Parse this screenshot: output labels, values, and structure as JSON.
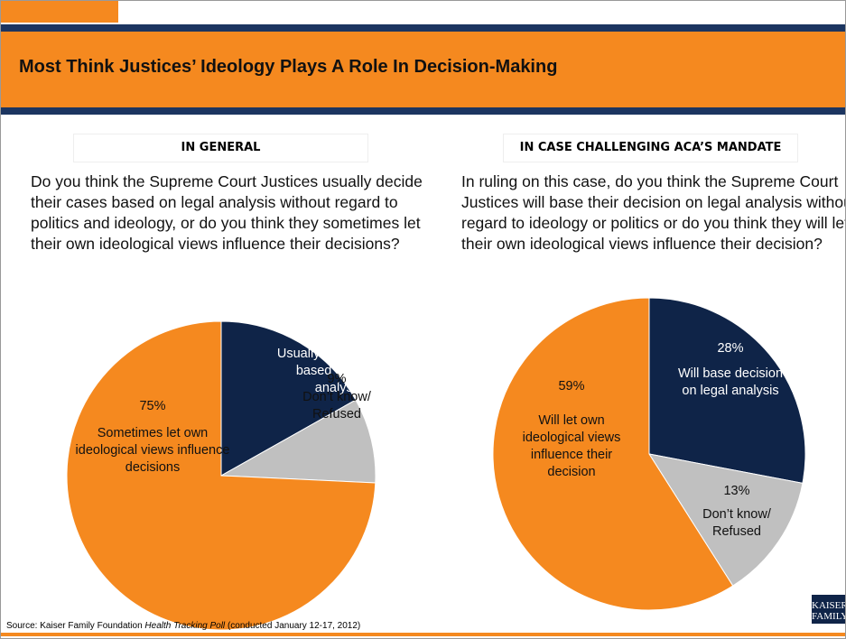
{
  "title": "Most Think Justices’ Ideology Plays A Role In Decision-Making",
  "source": {
    "prefix": "Source: Kaiser Family Foundation",
    "poll": "Health Tracking Poll",
    "suffix": "(conducted January 12-17, 2012)"
  },
  "logo": "KAISER FAMILY",
  "chart_data": [
    {
      "type": "pie",
      "heading": "IN GENERAL",
      "question": "Do you think the Supreme Court Justices usually decide their cases based on legal analysis without regard to politics and ideology, or do you think they sometimes let their own ideological views influence their decisions?",
      "categories": [
        "Usually decide cases based on legal analysis",
        "Don’t know/ Refused",
        "Sometimes let own ideological views influence decisions"
      ],
      "values": [
        17,
        9,
        75
      ],
      "value_labels": [
        "17%",
        "9%",
        "75%"
      ],
      "colors": [
        "#0f2448",
        "#c0c0c0",
        "#f5891f"
      ]
    },
    {
      "type": "pie",
      "heading": "IN CASE CHALLENGING ACA’S MANDATE",
      "question": "In ruling on this case, do you think the Supreme Court Justices will base their decision on legal analysis without regard to ideology or politics or do you think they will let their own ideological views influence their decision?",
      "categories": [
        "Will base decision on legal analysis",
        "Don’t know/ Refused",
        "Will let own ideological views influence their decision"
      ],
      "values": [
        28,
        13,
        59
      ],
      "value_labels": [
        "28%",
        "13%",
        "59%"
      ],
      "colors": [
        "#0f2448",
        "#c0c0c0",
        "#f5891f"
      ]
    }
  ]
}
